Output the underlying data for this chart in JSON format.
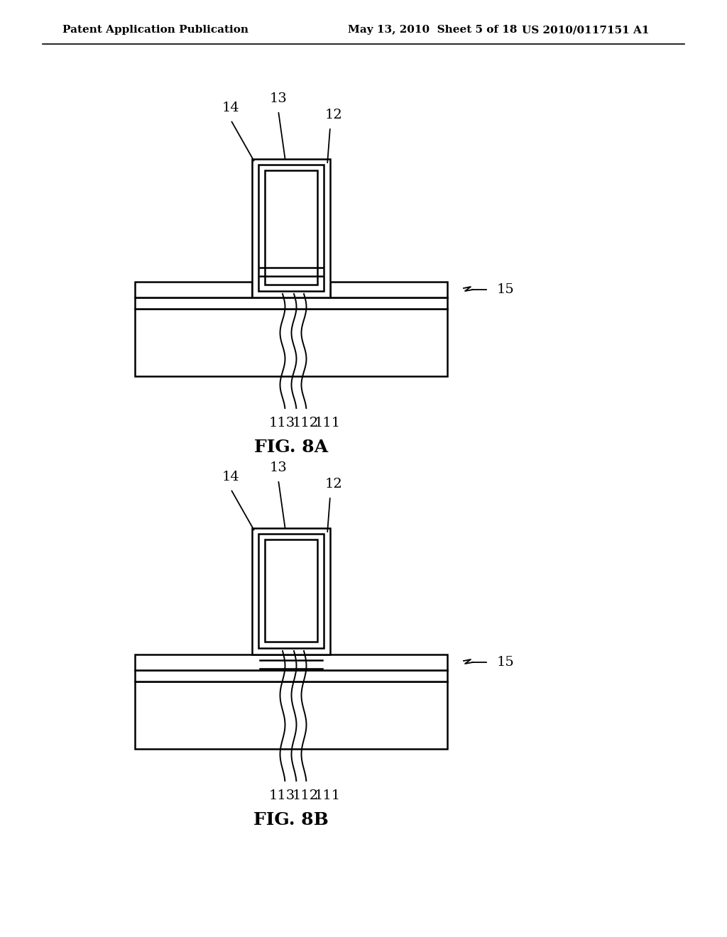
{
  "fig_width": 10.24,
  "fig_height": 13.2,
  "bg_color": "#ffffff",
  "line_color": "#000000",
  "header_left": "Patent Application Publication",
  "header_mid": "May 13, 2010  Sheet 5 of 18",
  "header_right": "US 2010/0117151 A1",
  "fig8a_label": "FIG. 8A",
  "fig8b_label": "FIG. 8B"
}
